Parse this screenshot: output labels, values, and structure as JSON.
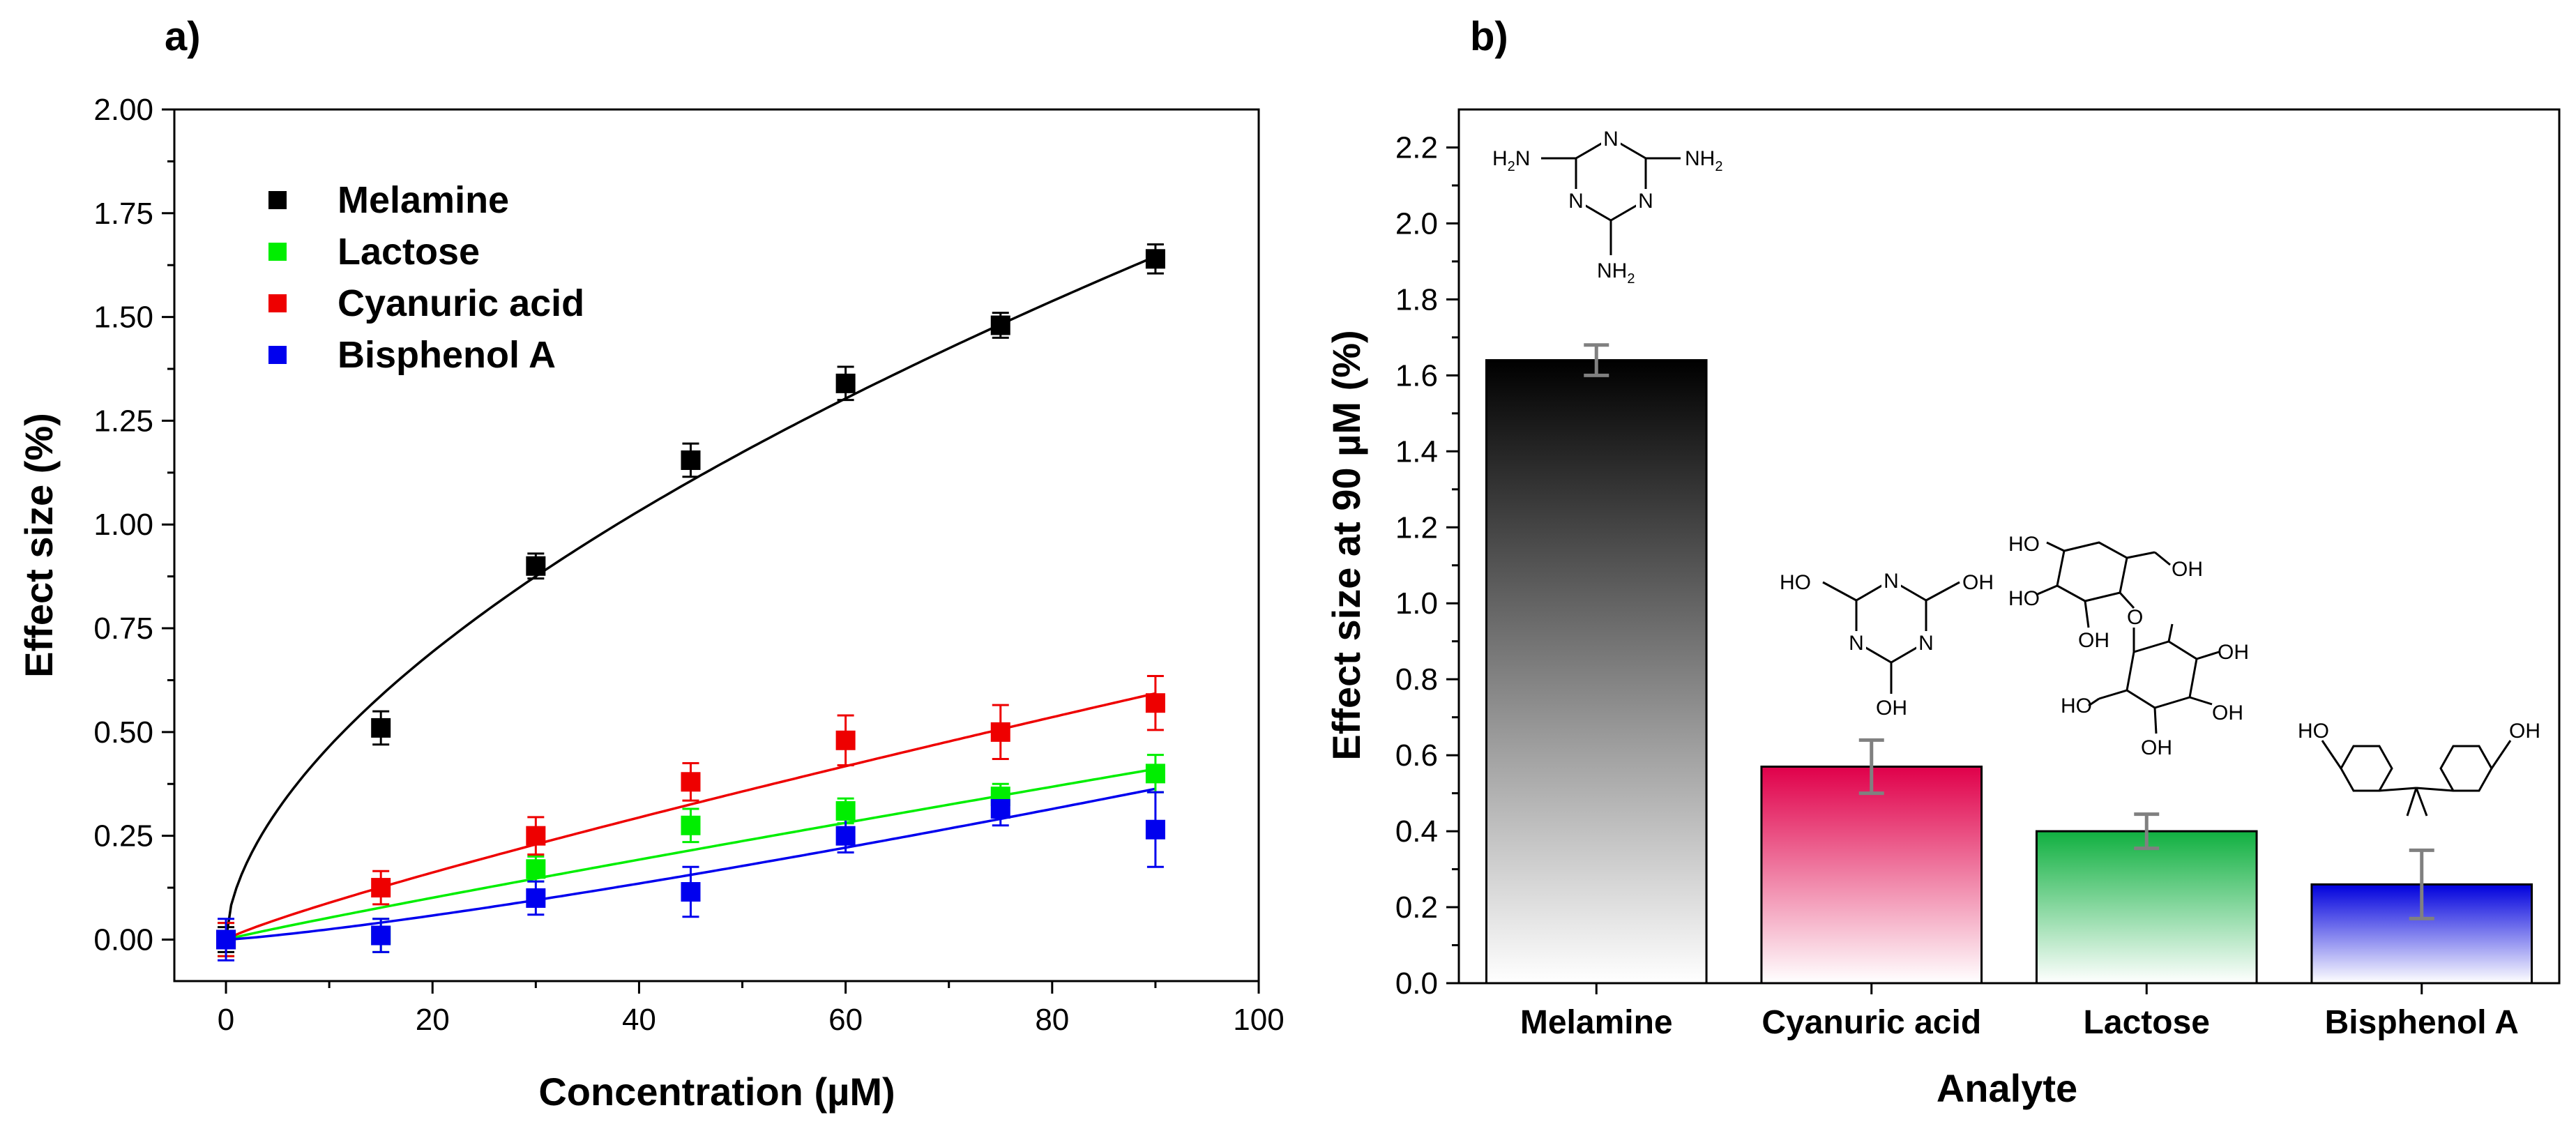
{
  "chart_data": [
    {
      "type": "scatter",
      "panel_label": "a)",
      "xlabel": "Concentration (µM)",
      "ylabel": "Effect size (%)",
      "xlim": [
        -5,
        100
      ],
      "ylim": [
        -0.1,
        2.0
      ],
      "xticks": [
        0,
        20,
        40,
        60,
        80,
        100
      ],
      "xtick_labels": [
        "0",
        "20",
        "40",
        "60",
        "80",
        "100"
      ],
      "yticks": [
        0,
        0.25,
        0.5,
        0.75,
        1.0,
        1.25,
        1.5,
        1.75,
        2.0
      ],
      "ytick_labels": [
        "0.00",
        "0.25",
        "0.50",
        "0.75",
        "1.00",
        "1.25",
        "1.50",
        "1.75",
        "2.00"
      ],
      "grid": false,
      "legend_position": "top-left",
      "x": [
        0,
        15,
        30,
        45,
        60,
        75,
        90
      ],
      "series": [
        {
          "name": "Melamine",
          "color": "#000000",
          "values": [
            0.0,
            0.51,
            0.9,
            1.155,
            1.34,
            1.48,
            1.64
          ],
          "errors": [
            0.03,
            0.04,
            0.03,
            0.04,
            0.04,
            0.03,
            0.035
          ],
          "fit": {
            "model": "power",
            "a": 0.1238,
            "b": 0.575
          }
        },
        {
          "name": "Lactose",
          "color": "#00ee00",
          "values": [
            0.0,
            0.01,
            0.17,
            0.275,
            0.31,
            0.345,
            0.4
          ],
          "errors": [
            0.04,
            0.04,
            0.03,
            0.04,
            0.03,
            0.03,
            0.045
          ],
          "fit": {
            "model": "power",
            "a": 0.00612,
            "b": 0.935
          }
        },
        {
          "name": "Cyanuric acid",
          "color": "#ee0000",
          "values": [
            0.0,
            0.125,
            0.25,
            0.38,
            0.48,
            0.5,
            0.57
          ],
          "errors": [
            0.04,
            0.04,
            0.045,
            0.045,
            0.06,
            0.065,
            0.065
          ],
          "fit": {
            "model": "power",
            "a": 0.0121,
            "b": 0.865
          }
        },
        {
          "name": "Bisphenol A",
          "color": "#0000ee",
          "values": [
            0.0,
            0.01,
            0.1,
            0.115,
            0.25,
            0.315,
            0.265
          ],
          "errors": [
            0.05,
            0.04,
            0.04,
            0.06,
            0.04,
            0.04,
            0.09
          ],
          "fit": {
            "model": "power",
            "a": 0.0015,
            "b": 1.22
          }
        }
      ]
    },
    {
      "type": "bar",
      "panel_label": "b)",
      "xlabel": "Analyte",
      "ylabel": "Effect size at 90 µM (%)",
      "ylim": [
        0,
        2.3
      ],
      "yticks": [
        0,
        0.2,
        0.4,
        0.6,
        0.8,
        1.0,
        1.2,
        1.4,
        1.6,
        1.8,
        2.0,
        2.2
      ],
      "ytick_labels": [
        "0.0",
        "0.2",
        "0.4",
        "0.6",
        "0.8",
        "1.0",
        "1.2",
        "1.4",
        "1.6",
        "1.8",
        "2.0",
        "2.2"
      ],
      "grid": false,
      "categories": [
        "Melamine",
        "Cyanuric acid",
        "Lactose",
        "Bisphenol A"
      ],
      "values": [
        1.64,
        0.57,
        0.4,
        0.26
      ],
      "errors": [
        0.04,
        0.07,
        0.045,
        0.09
      ],
      "colors": [
        "#000000",
        "#e0004a",
        "#10b040",
        "#0000dd"
      ],
      "structure_labels": {
        "melamine": {
          "h2n_left": "H",
          "h2n_left_sub": "2",
          "h2n_left_n": "N",
          "ring_n": "N",
          "nh2_right": "NH",
          "nh2_right_sub": "2",
          "nh2_bottom": "NH",
          "nh2_bottom_sub": "2"
        },
        "cyanuric": {
          "ho_left": "HO",
          "oh_right": "OH",
          "oh_bottom": "OH",
          "ring_n": "N"
        },
        "lactose": {
          "oh": "OH",
          "o": "O",
          "ho": "HO"
        },
        "bisphenol": {
          "ho": "HO",
          "oh": "OH"
        }
      }
    }
  ]
}
